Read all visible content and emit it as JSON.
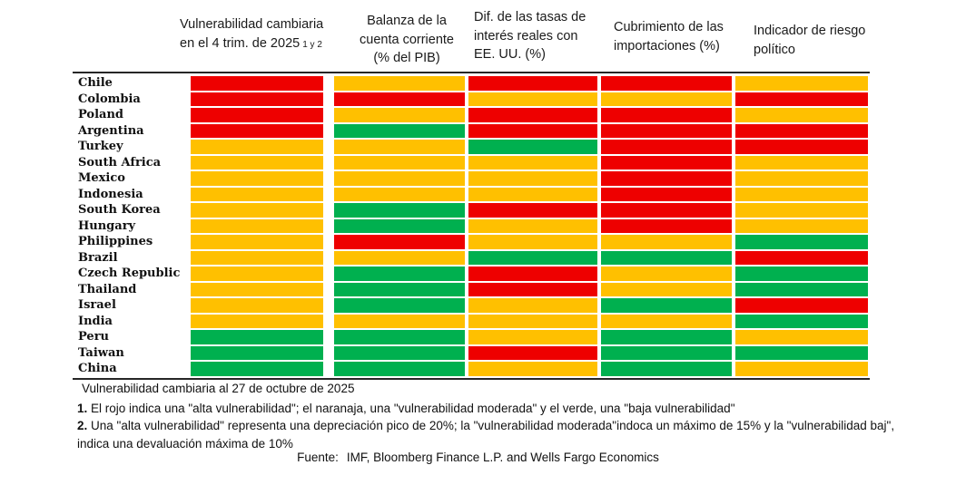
{
  "colors": {
    "red": "#EE0000",
    "orange": "#FFC000",
    "green": "#00B04F"
  },
  "headers": [
    {
      "text": "Vulnerabilidad cambiaria\nen el 4 trim. de 2025",
      "sup": "1 y 2"
    },
    {
      "text": "Balanza de la\ncuenta corriente\n(% del PIB)"
    },
    {
      "text": "Dif. de las tasas de\ninterés reales con\nEE. UU. (%)"
    },
    {
      "text": "Cubrimiento de las\nimportaciones (%)"
    },
    {
      "text": "Indicador de riesgo\npolítico"
    }
  ],
  "chart_data": {
    "type": "heatmap",
    "title": "Vulnerabilidad cambiaria al 27 de octubre de 2025",
    "columns": [
      "Vulnerabilidad cambiaria en el 4 trim. de 2025 1 y 2",
      "Balanza de la cuenta corriente (% del PIB)",
      "Dif. de las tasas de interés reales con EE. UU. (%)",
      "Cubrimiento de las importaciones (%)",
      "Indicador de riesgo político"
    ],
    "color_scale": {
      "red": "alta vulnerabilidad",
      "orange": "vulnerabilidad moderada",
      "green": "baja vulnerabilidad"
    },
    "rows": [
      {
        "country": "Chile",
        "values": [
          "red",
          "orange",
          "red",
          "red",
          "orange"
        ]
      },
      {
        "country": "Colombia",
        "values": [
          "red",
          "red",
          "orange",
          "orange",
          "red"
        ]
      },
      {
        "country": "Poland",
        "values": [
          "red",
          "orange",
          "red",
          "red",
          "orange"
        ]
      },
      {
        "country": "Argentina",
        "values": [
          "red",
          "green",
          "red",
          "red",
          "red"
        ]
      },
      {
        "country": "Turkey",
        "values": [
          "orange",
          "orange",
          "green",
          "red",
          "red"
        ]
      },
      {
        "country": "South Africa",
        "values": [
          "orange",
          "orange",
          "orange",
          "red",
          "orange"
        ]
      },
      {
        "country": "Mexico",
        "values": [
          "orange",
          "orange",
          "orange",
          "red",
          "orange"
        ]
      },
      {
        "country": "Indonesia",
        "values": [
          "orange",
          "orange",
          "orange",
          "red",
          "orange"
        ]
      },
      {
        "country": "South Korea",
        "values": [
          "orange",
          "green",
          "red",
          "red",
          "orange"
        ]
      },
      {
        "country": "Hungary",
        "values": [
          "orange",
          "green",
          "orange",
          "red",
          "orange"
        ]
      },
      {
        "country": "Philippines",
        "values": [
          "orange",
          "red",
          "orange",
          "orange",
          "green"
        ]
      },
      {
        "country": "Brazil",
        "values": [
          "orange",
          "orange",
          "green",
          "green",
          "red"
        ]
      },
      {
        "country": "Czech Republic",
        "values": [
          "orange",
          "green",
          "red",
          "orange",
          "green"
        ]
      },
      {
        "country": "Thailand",
        "values": [
          "orange",
          "green",
          "red",
          "orange",
          "green"
        ]
      },
      {
        "country": "Israel",
        "values": [
          "orange",
          "green",
          "orange",
          "green",
          "red"
        ]
      },
      {
        "country": "India",
        "values": [
          "orange",
          "orange",
          "orange",
          "orange",
          "green"
        ]
      },
      {
        "country": "Peru",
        "values": [
          "green",
          "green",
          "orange",
          "green",
          "orange"
        ]
      },
      {
        "country": "Taiwan",
        "values": [
          "green",
          "green",
          "red",
          "green",
          "green"
        ]
      },
      {
        "country": "China",
        "values": [
          "green",
          "green",
          "orange",
          "green",
          "orange"
        ]
      }
    ]
  },
  "footer": {
    "caption": "Vulnerabilidad cambiaria al 27 de octubre de 2025",
    "note1_num": "1.",
    "note1_text": "El rojo indica una \"alta vulnerabilidad\"; el naranaja, una \"vulnerabilidad moderada\" y el verde, una \"baja vulnerabilidad\"",
    "note2_num": "2.",
    "note2_text": "Una \"alta vulnerabilidad\" representa una depreciación pico de 20%; la \"vulnerabilidad moderada\"indoca un máximo de 15% y la \"vulnerabilidad baj\",\nindica una devaluación máxima de 10%",
    "source_label": "Fuente:",
    "source": "IMF, Bloomberg Finance L.P. and Wells Fargo Economics"
  }
}
